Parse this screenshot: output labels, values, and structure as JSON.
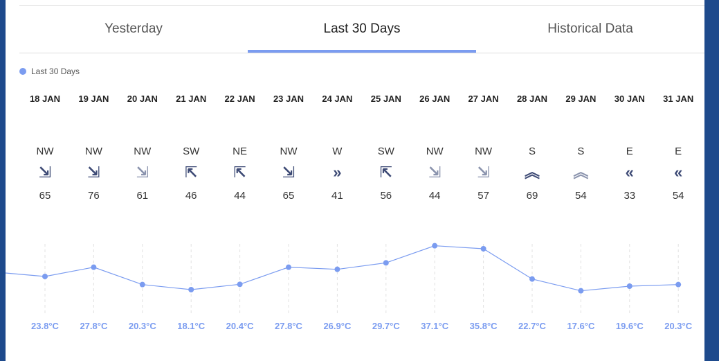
{
  "tabs": [
    {
      "label": "Yesterday",
      "active": false
    },
    {
      "label": "Last 30 Days",
      "active": true
    },
    {
      "label": "Historical Data",
      "active": false
    }
  ],
  "colors": {
    "accent": "#7b9cf0",
    "arrow": "#3d4a75",
    "arrow_light": "#8a93ad",
    "page_background": "#1e4a8c"
  },
  "chart_data": {
    "type": "line",
    "legend": [
      "Last 30 Days"
    ],
    "categories": [
      "18 JAN",
      "19 JAN",
      "20 JAN",
      "21 JAN",
      "22 JAN",
      "23 JAN",
      "24 JAN",
      "25 JAN",
      "26 JAN",
      "27 JAN",
      "28 JAN",
      "29 JAN",
      "30 JAN",
      "31 JAN"
    ],
    "series": [
      {
        "name": "Last 30 Days",
        "values": [
          23.8,
          27.8,
          20.3,
          18.1,
          20.4,
          27.8,
          26.9,
          29.7,
          37.1,
          35.8,
          22.7,
          17.6,
          19.6,
          20.3
        ]
      }
    ],
    "temp_labels": [
      "23.8°C",
      "27.8°C",
      "20.3°C",
      "18.1°C",
      "20.4°C",
      "27.8°C",
      "26.9°C",
      "29.7°C",
      "37.1°C",
      "35.8°C",
      "22.7°C",
      "17.6°C",
      "19.6°C",
      "20.3°C"
    ],
    "wind_direction": [
      "NW",
      "NW",
      "NW",
      "SW",
      "NE",
      "NW",
      "W",
      "SW",
      "NW",
      "NW",
      "S",
      "S",
      "E",
      "E"
    ],
    "wind_speed": [
      "65",
      "76",
      "61",
      "46",
      "44",
      "65",
      "41",
      "56",
      "44",
      "57",
      "69",
      "54",
      "33",
      "54"
    ],
    "wind_arrows": [
      "⇲",
      "⇲",
      "⇲",
      "⇱",
      "⇱",
      "⇲",
      "»",
      "⇱",
      "⇲",
      "⇲",
      "︽",
      "︽",
      "«",
      "«"
    ],
    "wind_arrow_light": [
      false,
      false,
      true,
      false,
      false,
      false,
      false,
      false,
      true,
      true,
      false,
      true,
      false,
      false
    ],
    "incoming_value": 25.3,
    "grid": true
  }
}
